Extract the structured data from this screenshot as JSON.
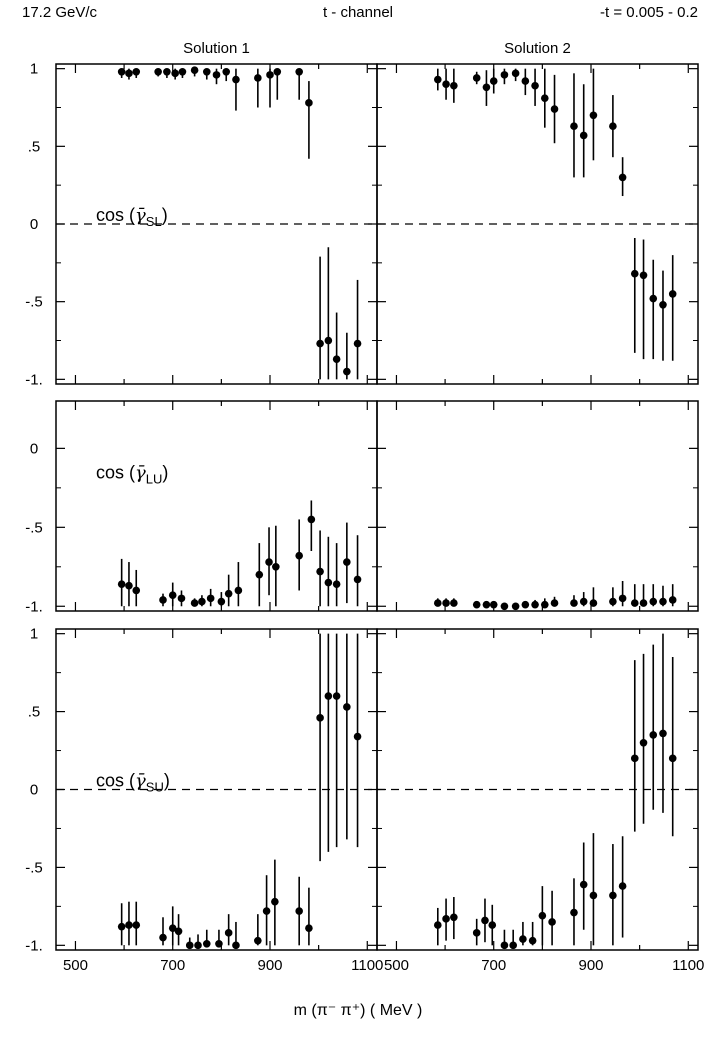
{
  "header": {
    "left": "17.2 GeV/c",
    "center": "t - channel",
    "right": "-t = 0.005 - 0.2"
  },
  "columns": [
    "Solution 1",
    "Solution 2"
  ],
  "x_axis_label": "m (π⁻ π⁺)  ( MeV )",
  "chart_data": {
    "type": "scatter",
    "x_axis": {
      "label": "m (π⁻ π⁺)  ( MeV )",
      "range": [
        460,
        1120
      ],
      "ticks": [
        500,
        700,
        900,
        1100
      ]
    },
    "panels": [
      {
        "row": 0,
        "column": "Solution 1",
        "label": "cos (γ̄SL)",
        "label_main": "cos (",
        "label_sub": "SL",
        "label_close": ")",
        "ylim": [
          -1.03,
          1.03
        ],
        "yticks": [
          1,
          0.5,
          0,
          -0.5,
          -1
        ],
        "ytick_labels": [
          "1",
          ".5",
          "0",
          "-.5",
          "-1."
        ],
        "zero_line": true,
        "points": [
          {
            "x": 595,
            "y": 0.98,
            "lo": 0.94,
            "hi": 1.0
          },
          {
            "x": 610,
            "y": 0.97,
            "lo": 0.93,
            "hi": 1.0
          },
          {
            "x": 625,
            "y": 0.98,
            "lo": 0.94,
            "hi": 1.0
          },
          {
            "x": 670,
            "y": 0.98,
            "lo": 0.95,
            "hi": 1.0
          },
          {
            "x": 688,
            "y": 0.98,
            "lo": 0.94,
            "hi": 1.0
          },
          {
            "x": 705,
            "y": 0.97,
            "lo": 0.93,
            "hi": 1.0
          },
          {
            "x": 720,
            "y": 0.98,
            "lo": 0.94,
            "hi": 1.0
          },
          {
            "x": 745,
            "y": 0.99,
            "lo": 0.95,
            "hi": 1.0
          },
          {
            "x": 770,
            "y": 0.98,
            "lo": 0.93,
            "hi": 1.0
          },
          {
            "x": 790,
            "y": 0.96,
            "lo": 0.9,
            "hi": 1.0
          },
          {
            "x": 810,
            "y": 0.98,
            "lo": 0.92,
            "hi": 1.0
          },
          {
            "x": 830,
            "y": 0.93,
            "lo": 0.73,
            "hi": 1.0
          },
          {
            "x": 875,
            "y": 0.94,
            "lo": 0.75,
            "hi": 1.0
          },
          {
            "x": 900,
            "y": 0.96,
            "lo": 0.75,
            "hi": 1.0
          },
          {
            "x": 915,
            "y": 0.98,
            "lo": 0.8,
            "hi": 1.0
          },
          {
            "x": 960,
            "y": 0.98,
            "lo": 0.8,
            "hi": 1.0
          },
          {
            "x": 980,
            "y": 0.78,
            "lo": 0.42,
            "hi": 0.92
          },
          {
            "x": 1003,
            "y": -0.77,
            "lo": -1.0,
            "hi": -0.21
          },
          {
            "x": 1020,
            "y": -0.75,
            "lo": -1.0,
            "hi": -0.15
          },
          {
            "x": 1037,
            "y": -0.87,
            "lo": -1.0,
            "hi": -0.57
          },
          {
            "x": 1058,
            "y": -0.95,
            "lo": -1.0,
            "hi": -0.7
          },
          {
            "x": 1080,
            "y": -0.77,
            "lo": -1.0,
            "hi": -0.36
          }
        ]
      },
      {
        "row": 0,
        "column": "Solution 2",
        "label": "",
        "ylim": [
          -1.03,
          1.03
        ],
        "yticks": [
          1,
          0.5,
          0,
          -0.5,
          -1
        ],
        "zero_line": true,
        "points": [
          {
            "x": 585,
            "y": 0.93,
            "lo": 0.86,
            "hi": 1.0
          },
          {
            "x": 602,
            "y": 0.9,
            "lo": 0.8,
            "hi": 1.0
          },
          {
            "x": 618,
            "y": 0.89,
            "lo": 0.78,
            "hi": 1.0
          },
          {
            "x": 665,
            "y": 0.94,
            "lo": 0.9,
            "hi": 0.98
          },
          {
            "x": 685,
            "y": 0.88,
            "lo": 0.76,
            "hi": 0.99
          },
          {
            "x": 700,
            "y": 0.92,
            "lo": 0.84,
            "hi": 1.0
          },
          {
            "x": 722,
            "y": 0.96,
            "lo": 0.9,
            "hi": 1.0
          },
          {
            "x": 745,
            "y": 0.97,
            "lo": 0.92,
            "hi": 1.0
          },
          {
            "x": 765,
            "y": 0.92,
            "lo": 0.83,
            "hi": 1.0
          },
          {
            "x": 785,
            "y": 0.89,
            "lo": 0.76,
            "hi": 1.0
          },
          {
            "x": 805,
            "y": 0.81,
            "lo": 0.62,
            "hi": 1.0
          },
          {
            "x": 825,
            "y": 0.74,
            "lo": 0.52,
            "hi": 0.96
          },
          {
            "x": 865,
            "y": 0.63,
            "lo": 0.3,
            "hi": 0.97
          },
          {
            "x": 885,
            "y": 0.57,
            "lo": 0.3,
            "hi": 0.9
          },
          {
            "x": 905,
            "y": 0.7,
            "lo": 0.41,
            "hi": 1.0
          },
          {
            "x": 945,
            "y": 0.63,
            "lo": 0.43,
            "hi": 0.83
          },
          {
            "x": 965,
            "y": 0.3,
            "lo": 0.18,
            "hi": 0.43
          },
          {
            "x": 990,
            "y": -0.32,
            "lo": -0.83,
            "hi": -0.09
          },
          {
            "x": 1008,
            "y": -0.33,
            "lo": -0.87,
            "hi": -0.1
          },
          {
            "x": 1028,
            "y": -0.48,
            "lo": -0.87,
            "hi": -0.23
          },
          {
            "x": 1048,
            "y": -0.52,
            "lo": -0.88,
            "hi": -0.3
          },
          {
            "x": 1068,
            "y": -0.45,
            "lo": -0.88,
            "hi": -0.2
          }
        ]
      },
      {
        "row": 1,
        "column": "Solution 1",
        "label": "cos (γ̄LU)",
        "label_main": "cos (",
        "label_sub": "LU",
        "label_close": ")",
        "ylim": [
          -1.03,
          0.3
        ],
        "yticks": [
          0,
          -0.5,
          -1
        ],
        "ytick_labels": [
          "0",
          "-.5",
          "-1."
        ],
        "zero_line": false,
        "points": [
          {
            "x": 595,
            "y": -0.86,
            "lo": -1.0,
            "hi": -0.7
          },
          {
            "x": 610,
            "y": -0.87,
            "lo": -1.0,
            "hi": -0.72
          },
          {
            "x": 625,
            "y": -0.9,
            "lo": -1.0,
            "hi": -0.77
          },
          {
            "x": 680,
            "y": -0.96,
            "lo": -1.0,
            "hi": -0.92
          },
          {
            "x": 700,
            "y": -0.93,
            "lo": -1.0,
            "hi": -0.85
          },
          {
            "x": 718,
            "y": -0.95,
            "lo": -1.0,
            "hi": -0.9
          },
          {
            "x": 745,
            "y": -0.98,
            "lo": -1.0,
            "hi": -0.95
          },
          {
            "x": 760,
            "y": -0.97,
            "lo": -1.0,
            "hi": -0.93
          },
          {
            "x": 778,
            "y": -0.95,
            "lo": -1.0,
            "hi": -0.89
          },
          {
            "x": 800,
            "y": -0.97,
            "lo": -1.0,
            "hi": -0.91
          },
          {
            "x": 815,
            "y": -0.92,
            "lo": -1.0,
            "hi": -0.8
          },
          {
            "x": 835,
            "y": -0.9,
            "lo": -1.0,
            "hi": -0.72
          },
          {
            "x": 878,
            "y": -0.8,
            "lo": -1.0,
            "hi": -0.6
          },
          {
            "x": 898,
            "y": -0.72,
            "lo": -0.93,
            "hi": -0.5
          },
          {
            "x": 912,
            "y": -0.75,
            "lo": -1.0,
            "hi": -0.49
          },
          {
            "x": 960,
            "y": -0.68,
            "lo": -0.9,
            "hi": -0.45
          },
          {
            "x": 985,
            "y": -0.45,
            "lo": -0.65,
            "hi": -0.33
          },
          {
            "x": 1003,
            "y": -0.78,
            "lo": -1.0,
            "hi": -0.52
          },
          {
            "x": 1020,
            "y": -0.85,
            "lo": -1.0,
            "hi": -0.56
          },
          {
            "x": 1037,
            "y": -0.86,
            "lo": -1.0,
            "hi": -0.6
          },
          {
            "x": 1058,
            "y": -0.72,
            "lo": -0.98,
            "hi": -0.47
          },
          {
            "x": 1080,
            "y": -0.83,
            "lo": -1.0,
            "hi": -0.55
          }
        ]
      },
      {
        "row": 1,
        "column": "Solution 2",
        "label": "",
        "ylim": [
          -1.03,
          0.3
        ],
        "yticks": [
          0,
          -0.5,
          -1
        ],
        "zero_line": false,
        "points": [
          {
            "x": 585,
            "y": -0.98,
            "lo": -1.0,
            "hi": -0.95
          },
          {
            "x": 602,
            "y": -0.98,
            "lo": -1.0,
            "hi": -0.95
          },
          {
            "x": 618,
            "y": -0.98,
            "lo": -1.0,
            "hi": -0.95
          },
          {
            "x": 665,
            "y": -0.99,
            "lo": -1.0,
            "hi": -0.97
          },
          {
            "x": 685,
            "y": -0.99,
            "lo": -1.0,
            "hi": -0.97
          },
          {
            "x": 700,
            "y": -0.99,
            "lo": -1.0,
            "hi": -0.97
          },
          {
            "x": 722,
            "y": -1.0,
            "lo": -1.0,
            "hi": -0.98
          },
          {
            "x": 745,
            "y": -1.0,
            "lo": -1.0,
            "hi": -0.98
          },
          {
            "x": 765,
            "y": -0.99,
            "lo": -1.0,
            "hi": -0.97
          },
          {
            "x": 785,
            "y": -0.99,
            "lo": -1.0,
            "hi": -0.96
          },
          {
            "x": 805,
            "y": -0.99,
            "lo": -1.0,
            "hi": -0.95
          },
          {
            "x": 825,
            "y": -0.98,
            "lo": -1.0,
            "hi": -0.94
          },
          {
            "x": 865,
            "y": -0.98,
            "lo": -1.0,
            "hi": -0.93
          },
          {
            "x": 885,
            "y": -0.97,
            "lo": -1.0,
            "hi": -0.91
          },
          {
            "x": 905,
            "y": -0.98,
            "lo": -1.0,
            "hi": -0.88
          },
          {
            "x": 945,
            "y": -0.97,
            "lo": -1.0,
            "hi": -0.88
          },
          {
            "x": 965,
            "y": -0.95,
            "lo": -1.0,
            "hi": -0.84
          },
          {
            "x": 990,
            "y": -0.98,
            "lo": -1.0,
            "hi": -0.86
          },
          {
            "x": 1008,
            "y": -0.98,
            "lo": -1.0,
            "hi": -0.86
          },
          {
            "x": 1028,
            "y": -0.97,
            "lo": -1.0,
            "hi": -0.86
          },
          {
            "x": 1048,
            "y": -0.97,
            "lo": -1.0,
            "hi": -0.87
          },
          {
            "x": 1068,
            "y": -0.96,
            "lo": -1.0,
            "hi": -0.86
          }
        ]
      },
      {
        "row": 2,
        "column": "Solution 1",
        "label": "cos (γ̄SU)",
        "label_main": "cos (",
        "label_sub": "SU",
        "label_close": ")",
        "ylim": [
          -1.03,
          1.03
        ],
        "yticks": [
          1,
          0.5,
          0,
          -0.5,
          -1
        ],
        "ytick_labels": [
          "1",
          ".5",
          "0",
          "-.5",
          "-1."
        ],
        "zero_line": true,
        "points": [
          {
            "x": 595,
            "y": -0.88,
            "lo": -1.0,
            "hi": -0.73
          },
          {
            "x": 610,
            "y": -0.87,
            "lo": -1.0,
            "hi": -0.72
          },
          {
            "x": 625,
            "y": -0.87,
            "lo": -1.0,
            "hi": -0.72
          },
          {
            "x": 680,
            "y": -0.95,
            "lo": -1.0,
            "hi": -0.82
          },
          {
            "x": 700,
            "y": -0.89,
            "lo": -1.0,
            "hi": -0.75
          },
          {
            "x": 712,
            "y": -0.91,
            "lo": -1.0,
            "hi": -0.8
          },
          {
            "x": 735,
            "y": -1.0,
            "lo": -1.0,
            "hi": -0.95
          },
          {
            "x": 752,
            "y": -1.0,
            "lo": -1.0,
            "hi": -0.93
          },
          {
            "x": 770,
            "y": -0.99,
            "lo": -1.0,
            "hi": -0.9
          },
          {
            "x": 795,
            "y": -0.99,
            "lo": -1.0,
            "hi": -0.9
          },
          {
            "x": 815,
            "y": -0.92,
            "lo": -1.0,
            "hi": -0.8
          },
          {
            "x": 830,
            "y": -1.0,
            "lo": -1.0,
            "hi": -0.85
          },
          {
            "x": 875,
            "y": -0.97,
            "lo": -1.0,
            "hi": -0.8
          },
          {
            "x": 893,
            "y": -0.78,
            "lo": -1.0,
            "hi": -0.55
          },
          {
            "x": 910,
            "y": -0.72,
            "lo": -1.0,
            "hi": -0.45
          },
          {
            "x": 960,
            "y": -0.78,
            "lo": -1.0,
            "hi": -0.56
          },
          {
            "x": 980,
            "y": -0.89,
            "lo": -1.0,
            "hi": -0.63
          },
          {
            "x": 1003,
            "y": 0.46,
            "lo": -0.46,
            "hi": 1.0
          },
          {
            "x": 1020,
            "y": 0.6,
            "lo": -0.4,
            "hi": 1.0
          },
          {
            "x": 1037,
            "y": 0.6,
            "lo": -0.37,
            "hi": 1.0
          },
          {
            "x": 1058,
            "y": 0.53,
            "lo": -0.32,
            "hi": 1.0
          },
          {
            "x": 1080,
            "y": 0.34,
            "lo": -0.37,
            "hi": 1.0
          }
        ]
      },
      {
        "row": 2,
        "column": "Solution 2",
        "label": "",
        "ylim": [
          -1.03,
          1.03
        ],
        "yticks": [
          1,
          0.5,
          0,
          -0.5,
          -1
        ],
        "zero_line": true,
        "points": [
          {
            "x": 585,
            "y": -0.87,
            "lo": -1.0,
            "hi": -0.76
          },
          {
            "x": 602,
            "y": -0.83,
            "lo": -0.97,
            "hi": -0.7
          },
          {
            "x": 618,
            "y": -0.82,
            "lo": -0.96,
            "hi": -0.69
          },
          {
            "x": 665,
            "y": -0.92,
            "lo": -1.0,
            "hi": -0.83
          },
          {
            "x": 682,
            "y": -0.84,
            "lo": -0.98,
            "hi": -0.7
          },
          {
            "x": 697,
            "y": -0.87,
            "lo": -1.0,
            "hi": -0.74
          },
          {
            "x": 722,
            "y": -1.0,
            "lo": -1.0,
            "hi": -0.9
          },
          {
            "x": 740,
            "y": -1.0,
            "lo": -1.0,
            "hi": -0.9
          },
          {
            "x": 760,
            "y": -0.96,
            "lo": -1.0,
            "hi": -0.85
          },
          {
            "x": 780,
            "y": -0.97,
            "lo": -1.0,
            "hi": -0.85
          },
          {
            "x": 800,
            "y": -0.81,
            "lo": -1.0,
            "hi": -0.62
          },
          {
            "x": 820,
            "y": -0.85,
            "lo": -1.0,
            "hi": -0.65
          },
          {
            "x": 865,
            "y": -0.79,
            "lo": -1.0,
            "hi": -0.57
          },
          {
            "x": 885,
            "y": -0.61,
            "lo": -0.9,
            "hi": -0.34
          },
          {
            "x": 905,
            "y": -0.68,
            "lo": -1.0,
            "hi": -0.28
          },
          {
            "x": 945,
            "y": -0.68,
            "lo": -1.0,
            "hi": -0.35
          },
          {
            "x": 965,
            "y": -0.62,
            "lo": -0.95,
            "hi": -0.3
          },
          {
            "x": 990,
            "y": 0.2,
            "lo": -0.27,
            "hi": 0.83
          },
          {
            "x": 1008,
            "y": 0.3,
            "lo": -0.22,
            "hi": 0.87
          },
          {
            "x": 1028,
            "y": 0.35,
            "lo": -0.13,
            "hi": 0.93
          },
          {
            "x": 1048,
            "y": 0.36,
            "lo": -0.15,
            "hi": 1.0
          },
          {
            "x": 1068,
            "y": 0.2,
            "lo": -0.3,
            "hi": 0.85
          }
        ]
      }
    ]
  }
}
